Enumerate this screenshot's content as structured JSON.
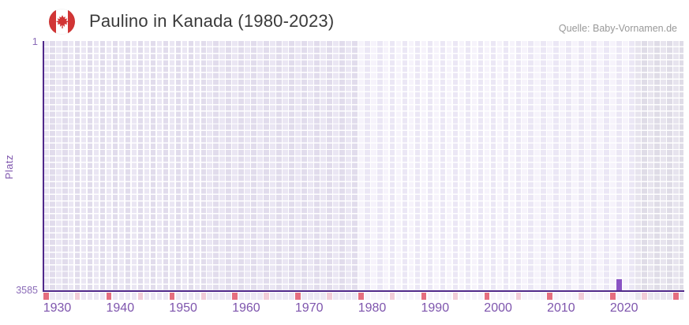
{
  "header": {
    "flag_icon": "canada-flag-icon",
    "title": "Paulino in Kanada (1980-2023)",
    "source": "Quelle: Baby-Vornamen.de"
  },
  "chart_data": {
    "type": "bar",
    "title": "Paulino in Kanada (1980-2023)",
    "ylabel": "Platz",
    "xlabel": "",
    "grid": "on",
    "legend": "none",
    "y_axis": {
      "min": 1,
      "max": 3585,
      "inverted": true,
      "ticks": [
        "1",
        "3585"
      ]
    },
    "x_axis": {
      "first_year": 1930,
      "last_visible_year": 2031,
      "tick_years": [
        1930,
        1940,
        1950,
        1960,
        1970,
        1980,
        1990,
        2000,
        2010,
        2020
      ],
      "minor_tick_interval": 5
    },
    "highlight_range": {
      "from": 1980,
      "to": 2023
    },
    "series": [
      {
        "name": "Platz",
        "points": [
          {
            "year": 2021,
            "value": 3427
          }
        ]
      }
    ]
  },
  "theme": {
    "bar_color": "#8a54c4",
    "axis_color": "#50298a",
    "x_tick_label_color": "#7e55ad",
    "y_tick_label_color": "#8b6cb8",
    "title_color": "#3a3a3a",
    "source_color": "#999999",
    "decade_tick_color": "#e56e7f",
    "half_decade_tick_color": "#f1ccd8",
    "flag_red": "#d23535",
    "cell_pre_even": "#eae6f3",
    "cell_pre_odd": "#e1dcec",
    "cell_mid_even": "#f6f3fb",
    "cell_mid_odd": "#ebe7f5",
    "cell_post_even": "#e7e4ee",
    "cell_post_odd": "#dfdce7",
    "strip_pre": "#ece8f4",
    "strip_mid": "#f6f3fb",
    "strip_post": "#e9e6ef"
  }
}
